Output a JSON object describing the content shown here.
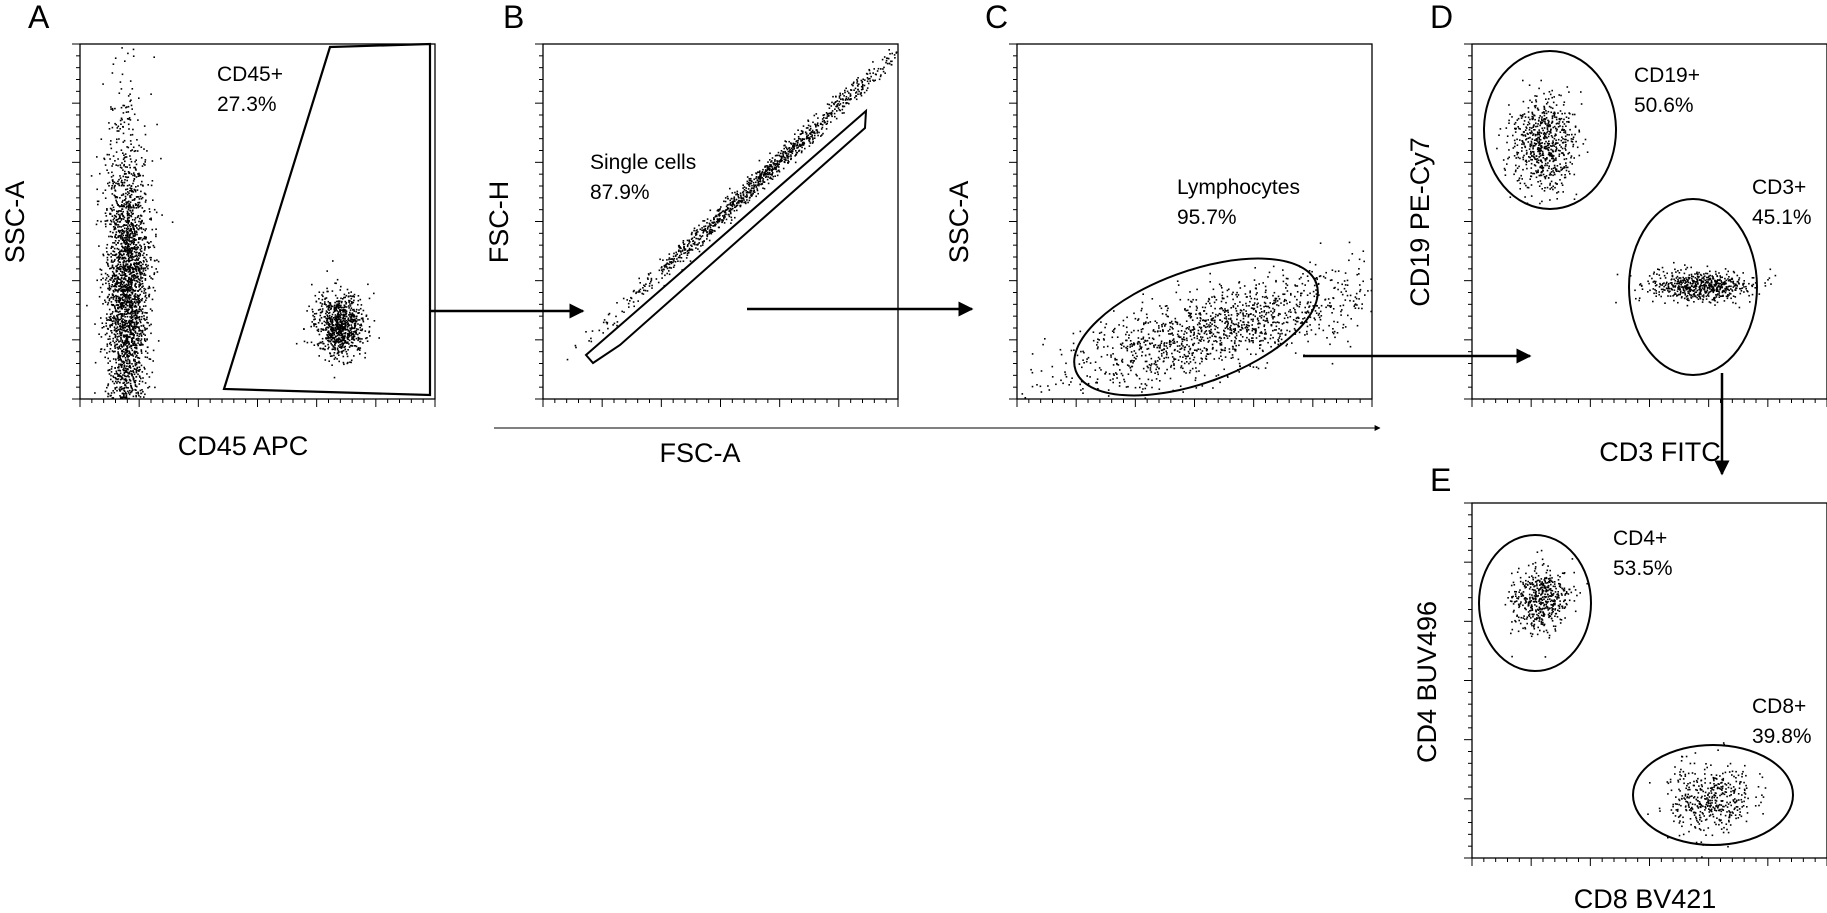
{
  "chart_data": [
    {
      "type": "scatter",
      "panel": "A",
      "xlabel": "CD45 APC",
      "ylabel": "SSC-A",
      "gates": [
        {
          "name": "CD45+",
          "percent": "27.3%"
        }
      ],
      "populations": [
        {
          "gate": "CD45+",
          "x_center": 0.73,
          "y_center": 0.21,
          "count": 1300
        },
        {
          "gate": "CD45-",
          "x_center": 0.13,
          "y_center": 0.3,
          "count": 4200
        }
      ]
    },
    {
      "type": "scatter",
      "panel": "B",
      "xlabel": "FSC-A",
      "ylabel": "FSC-H",
      "gates": [
        {
          "name": "Single cells",
          "percent": "87.9%"
        }
      ],
      "populations": [
        {
          "gate": "Single cells",
          "x_center": 0.62,
          "y_center": 0.63,
          "count": 1800
        }
      ]
    },
    {
      "type": "scatter",
      "panel": "C",
      "xlabel": "FSC-A",
      "ylabel": "SSC-A",
      "gates": [
        {
          "name": "Lymphocytes",
          "percent": "95.7%"
        }
      ],
      "populations": [
        {
          "gate": "Lymphocytes",
          "x_center": 0.57,
          "y_center": 0.2,
          "count": 2200
        }
      ]
    },
    {
      "type": "scatter",
      "panel": "D",
      "xlabel": "CD3 FITC",
      "ylabel": "CD19  PE-Cy7",
      "gates": [
        {
          "name": "CD19+",
          "percent": "50.6%"
        },
        {
          "name": "CD3+",
          "percent": "45.1%"
        }
      ],
      "populations": [
        {
          "gate": "CD19+",
          "x_center": 0.2,
          "y_center": 0.72,
          "count": 1100
        },
        {
          "gate": "CD3+",
          "x_center": 0.64,
          "y_center": 0.32,
          "count": 1000
        }
      ]
    },
    {
      "type": "scatter",
      "panel": "E",
      "xlabel": "CD8 BV421",
      "ylabel": "CD4 BUV496",
      "gates": [
        {
          "name": "CD4+",
          "percent": "53.5%"
        },
        {
          "name": "CD8+",
          "percent": "39.8%"
        }
      ],
      "populations": [
        {
          "gate": "CD4+",
          "x_center": 0.19,
          "y_center": 0.73,
          "count": 800
        },
        {
          "gate": "CD8+",
          "x_center": 0.67,
          "y_center": 0.17,
          "count": 700
        }
      ]
    }
  ]
}
